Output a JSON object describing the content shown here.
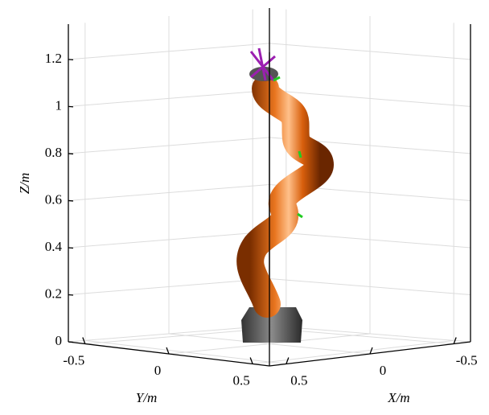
{
  "chart_data": {
    "type": "3d-robot",
    "zlabel": "Z/m",
    "ylabel": "Y/m",
    "xlabel": "X/m",
    "zlim": [
      0,
      1.35
    ],
    "zticks": [
      0,
      0.2,
      0.4,
      0.6,
      0.8,
      1,
      1.2
    ],
    "ylim": [
      -0.6,
      0.6
    ],
    "yticks": [
      -0.5,
      0,
      0.5
    ],
    "xlim": [
      0.6,
      -0.6
    ],
    "xticks": [
      0.5,
      0,
      -0.5
    ],
    "grid": true,
    "color": "#d2600f"
  }
}
